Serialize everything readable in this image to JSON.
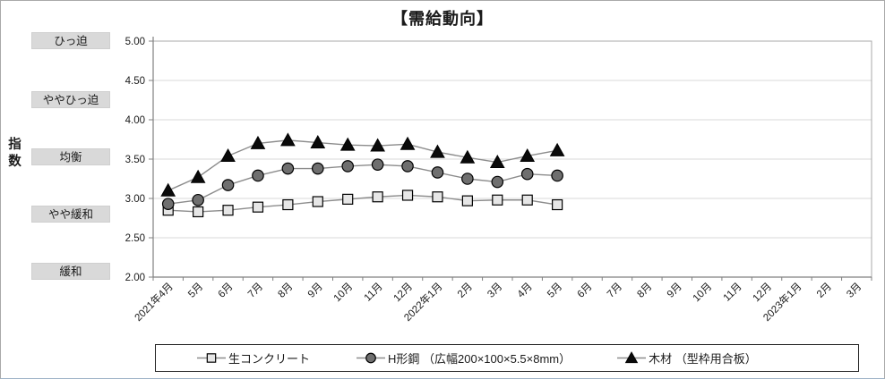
{
  "title": "【需給動向】",
  "y_axis_label": "指数",
  "condition_labels": [
    {
      "label": "ひっ迫",
      "value": 5.0
    },
    {
      "label": "ややひっ迫",
      "value": 4.25
    },
    {
      "label": "均衡",
      "value": 3.52
    },
    {
      "label": "やや緩和",
      "value": 2.8
    },
    {
      "label": "緩和",
      "value": 2.07
    }
  ],
  "chart_data": {
    "type": "line",
    "title": "【需給動向】",
    "ylabel": "指数",
    "ylim": [
      2.0,
      5.0
    ],
    "yticks": [
      "5.00",
      "4.50",
      "4.00",
      "3.50",
      "3.00",
      "2.50",
      "2.00"
    ],
    "grid": true,
    "legend_position": "bottom",
    "categories": [
      "2021年4月",
      "5月",
      "6月",
      "7月",
      "8月",
      "9月",
      "10月",
      "11月",
      "12月",
      "2022年1月",
      "2月",
      "3月",
      "4月",
      "5月",
      "6月",
      "7月",
      "8月",
      "9月",
      "10月",
      "11月",
      "12月",
      "2023年1月",
      "2月",
      "3月"
    ],
    "series": [
      {
        "name": "生コンクリート",
        "marker": "square",
        "marker_fill": "#e6e6e6",
        "line_color": "#8c8c8c",
        "values": [
          2.85,
          2.83,
          2.85,
          2.89,
          2.92,
          2.96,
          2.99,
          3.02,
          3.04,
          3.02,
          2.97,
          2.98,
          2.98,
          2.92
        ]
      },
      {
        "name": "H形鋼 （広幅200×100×5.5×8mm）",
        "marker": "circle",
        "marker_fill": "#6f6f6f",
        "line_color": "#8c8c8c",
        "values": [
          2.93,
          2.98,
          3.17,
          3.29,
          3.38,
          3.38,
          3.41,
          3.43,
          3.41,
          3.33,
          3.25,
          3.21,
          3.31,
          3.29
        ]
      },
      {
        "name": "木材 （型枠用合板）",
        "marker": "triangle",
        "marker_fill": "#0a0a0a",
        "line_color": "#8c8c8c",
        "values": [
          3.1,
          3.27,
          3.54,
          3.7,
          3.74,
          3.71,
          3.68,
          3.67,
          3.69,
          3.59,
          3.52,
          3.46,
          3.54,
          3.61
        ]
      }
    ]
  },
  "colors": {
    "grid": "#d9d9d9",
    "axis": "#808080",
    "plot_border": "#a8a8a8",
    "tick_text": "#1a1a1a",
    "label_box_bg": "#d9d9d9"
  }
}
